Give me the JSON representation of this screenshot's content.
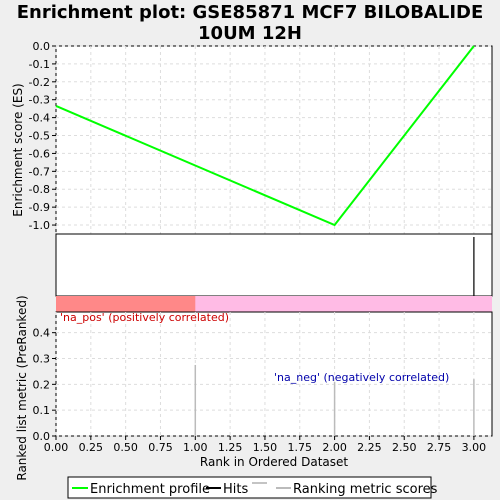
{
  "title_line1": "Enrichment plot: GSE85871 MCF7 BILOBALIDE",
  "title_line2": "10UM 12H",
  "colors": {
    "background": "#efefef",
    "panel": "#ffffff",
    "es_line": "#00ff00",
    "hits": "#000000",
    "pos_band": "#ff8888",
    "neg_band": "#ffbbe5",
    "pos_label": "#cc0000",
    "neg_label": "#0000aa",
    "metric": "#bbbbbb",
    "grid": "#dddddd"
  },
  "chart_data": [
    {
      "type": "line",
      "panel": "enrichment",
      "ylabel": "Enrichment score (ES)",
      "ylim": [
        -1.05,
        0.0
      ],
      "yticks": [
        0.0,
        -0.1,
        -0.2,
        -0.3,
        -0.4,
        -0.5,
        -0.6,
        -0.7,
        -0.8,
        -0.9,
        -1.0
      ],
      "ytick_labels": [
        "0.0",
        "-0.1",
        "-0.2",
        "-0.3",
        "-0.4",
        "-0.5",
        "-0.6",
        "-0.7",
        "-0.8",
        "-0.9",
        "-1.0"
      ],
      "xlim": [
        0,
        3.13
      ],
      "series": [
        {
          "name": "Enrichment profile",
          "x": [
            0,
            2,
            3
          ],
          "y": [
            -0.335,
            -1.0,
            0.0
          ]
        }
      ],
      "grid": true
    },
    {
      "type": "line",
      "panel": "hits",
      "series": [
        {
          "name": "Hits",
          "x": [
            3
          ]
        }
      ]
    },
    {
      "type": "bar",
      "panel": "ranked-metric",
      "ylabel": "Ranked list metric (PreRanked)",
      "xlabel": "Rank in Ordered Dataset",
      "ylim": [
        0,
        0.48
      ],
      "yticks": [
        0.0,
        0.1,
        0.2,
        0.3,
        0.4
      ],
      "ytick_labels": [
        "0.0",
        "0.1",
        "0.2",
        "0.3",
        "0.4"
      ],
      "xlim": [
        0,
        3.13
      ],
      "xticks": [
        0.0,
        0.25,
        0.5,
        0.75,
        1.0,
        1.25,
        1.5,
        1.75,
        2.0,
        2.25,
        2.5,
        2.75,
        3.0
      ],
      "xtick_labels": [
        "0.00",
        "0.25",
        "0.50",
        "0.75",
        "1.00",
        "1.25",
        "1.50",
        "1.75",
        "2.00",
        "2.25",
        "2.50",
        "2.75",
        "3.00"
      ],
      "series": [
        {
          "name": "Ranking metric scores",
          "x": [
            1,
            2,
            3
          ],
          "values": [
            0.275,
            0.21,
            0.22
          ]
        }
      ],
      "pos_region_end": 1.0,
      "pos_label": "'na_pos' (positively correlated)",
      "neg_label": "'na_neg' (negatively correlated)",
      "grid": true
    }
  ],
  "legend": {
    "placement": "bottom-center",
    "items": [
      {
        "label": "Enrichment profile",
        "color": "#00ff00"
      },
      {
        "label": "Hits",
        "color": "#000000"
      },
      {
        "label": "Ranking metric scores",
        "color": "#bbbbbb"
      }
    ]
  }
}
